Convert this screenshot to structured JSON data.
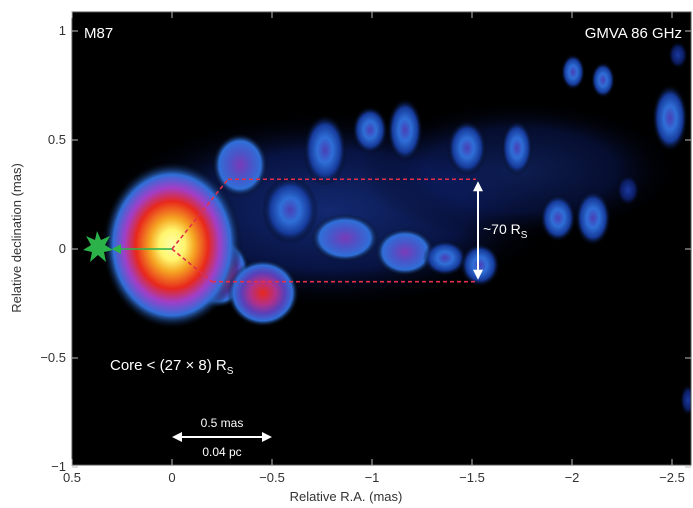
{
  "chart_data": {
    "type": "heatmap",
    "title": "",
    "xlabel": "Relative R.A. (mas)",
    "ylabel": "Relative declination (mas)",
    "xlim": [
      0.5,
      -2.6
    ],
    "ylim": [
      -1,
      1.05
    ],
    "x_ticks": [
      0.5,
      0,
      -0.5,
      -1,
      -1.5,
      -2,
      -2.5
    ],
    "x_tick_labels": [
      "0.5",
      "0",
      "−0.5",
      "−1",
      "−1.5",
      "−2",
      "−2.5"
    ],
    "y_ticks": [
      1,
      0.5,
      0,
      -0.5,
      -1
    ],
    "y_tick_labels": [
      "1",
      "0.5",
      "0",
      "−0.5",
      "−1"
    ],
    "colormap": [
      "#000000",
      "#0a1a6e",
      "#2f6fd8",
      "#a13ec7",
      "#e8281c",
      "#f5a623",
      "#fff56e"
    ],
    "object_label": "M87",
    "instrument_label": "GMVA 86 GHz",
    "core_label": "Core < (27 × 8) R",
    "core_label_sub": "S",
    "width_label": "~70 R",
    "width_label_sub": "S",
    "scale_bar_top": "0.5 mas",
    "scale_bar_bottom": "0.04 pc",
    "components": [
      {
        "x": 0.02,
        "y": 0.0,
        "intensity": 1.0
      },
      {
        "x": -0.28,
        "y": 0.4,
        "intensity": 0.45
      },
      {
        "x": -0.45,
        "y": -0.18,
        "intensity": 0.8
      },
      {
        "x": -0.7,
        "y": 0.6,
        "intensity": 0.35
      },
      {
        "x": -0.85,
        "y": 0.05,
        "intensity": 0.5
      },
      {
        "x": -1.15,
        "y": 0.55,
        "intensity": 0.4
      },
      {
        "x": -1.2,
        "y": -0.05,
        "intensity": 0.45
      },
      {
        "x": -1.5,
        "y": 0.45,
        "intensity": 0.4
      },
      {
        "x": -1.5,
        "y": -0.15,
        "intensity": 0.4
      },
      {
        "x": -1.75,
        "y": 0.45,
        "intensity": 0.35
      },
      {
        "x": -1.95,
        "y": 0.12,
        "intensity": 0.3
      },
      {
        "x": -2.1,
        "y": 0.15,
        "intensity": 0.35
      },
      {
        "x": -2.0,
        "y": 0.8,
        "intensity": 0.25
      },
      {
        "x": -2.15,
        "y": 0.78,
        "intensity": 0.25
      },
      {
        "x": -2.5,
        "y": 0.6,
        "intensity": 0.35
      }
    ],
    "jet_edges": {
      "top_y": 0.32,
      "bottom_y": -0.15,
      "x_start": -0.28,
      "x_end": -1.52
    },
    "grid": false,
    "legend": "none"
  }
}
